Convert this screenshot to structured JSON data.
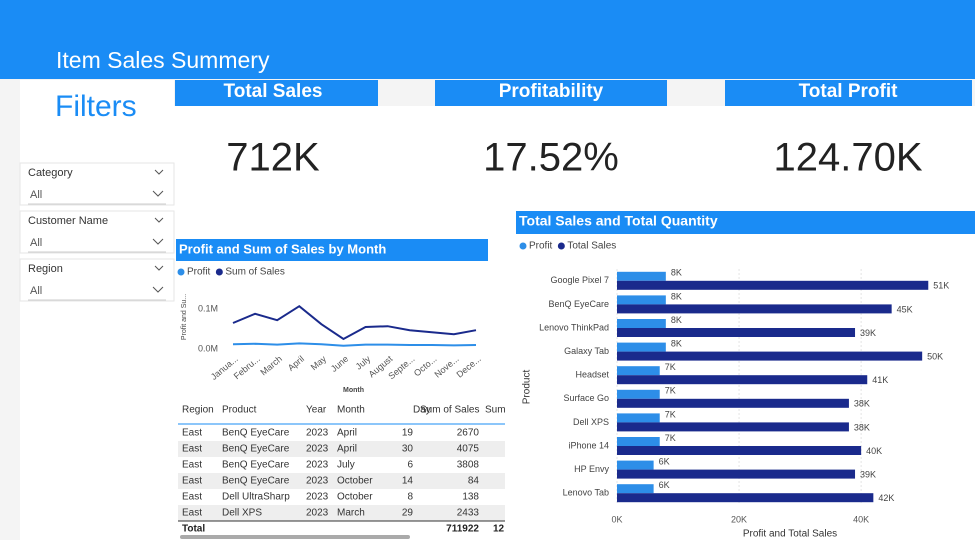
{
  "header": {
    "title": "Item Sales Summery"
  },
  "filters": {
    "title": "Filters",
    "items": [
      {
        "label": "Category",
        "value": "All"
      },
      {
        "label": "Customer Name",
        "value": "All"
      },
      {
        "label": "Region",
        "value": "All"
      }
    ]
  },
  "kpis": [
    {
      "label": "Total Sales",
      "value": "712K"
    },
    {
      "label": "Profitability",
      "value": "17.52%"
    },
    {
      "label": "Total Profit",
      "value": "124.70K"
    }
  ],
  "chart_data": [
    {
      "type": "line",
      "title": "Profit and Sum of Sales by Month",
      "x_label": "Month",
      "y_label": "Profit and Su...",
      "categories": [
        "Janua...",
        "Febru...",
        "March",
        "April",
        "May",
        "June",
        "July",
        "August",
        "Septe...",
        "Octo...",
        "Nove...",
        "Dece..."
      ],
      "series": [
        {
          "name": "Profit",
          "color": "#2d8ee8",
          "values": [
            0.012,
            0.013,
            0.011,
            0.014,
            0.012,
            0.008,
            0.011,
            0.011,
            0.01,
            0.01,
            0.009,
            0.01
          ]
        },
        {
          "name": "Sum of Sales",
          "color": "#1a2a8c",
          "values": [
            0.065,
            0.088,
            0.072,
            0.107,
            0.062,
            0.025,
            0.055,
            0.057,
            0.047,
            0.042,
            0.037,
            0.047
          ]
        }
      ],
      "ylim": [
        0,
        0.12
      ],
      "yticks": [
        {
          "value": 0,
          "label": "0.0M"
        },
        {
          "value": 0.1,
          "label": "0.1M"
        }
      ]
    },
    {
      "type": "bar",
      "orientation": "horizontal",
      "title": "Total Sales and Total Quantity",
      "x_label": "Profit and Total Sales",
      "y_label": "Product",
      "categories": [
        "Google Pixel 7",
        "BenQ EyeCare",
        "Lenovo ThinkPad",
        "Galaxy Tab",
        "Headset",
        "Surface Go",
        "Dell XPS",
        "iPhone 14",
        "HP Envy",
        "Lenovo Tab"
      ],
      "series": [
        {
          "name": "Profit",
          "color": "#2d8ee8",
          "values": [
            8,
            8,
            8,
            8,
            7,
            7,
            7,
            7,
            6,
            6
          ],
          "value_labels": [
            "8K",
            "8K",
            "8K",
            "8K",
            "7K",
            "7K",
            "7K",
            "7K",
            "6K",
            "6K"
          ]
        },
        {
          "name": "Total Sales",
          "color": "#1a2a8c",
          "values": [
            51,
            45,
            39,
            50,
            41,
            38,
            38,
            40,
            39,
            42
          ],
          "value_labels": [
            "51K",
            "45K",
            "39K",
            "50K",
            "41K",
            "38K",
            "38K",
            "40K",
            "39K",
            "42K"
          ]
        }
      ],
      "xlim": [
        0,
        58
      ],
      "xticks": [
        {
          "value": 0,
          "label": "0K"
        },
        {
          "value": 20,
          "label": "20K"
        },
        {
          "value": 40,
          "label": "40K"
        }
      ],
      "grid": true
    }
  ],
  "table": {
    "columns": [
      "Region",
      "Product",
      "Year",
      "Month",
      "Day",
      "Sum of Sales",
      "Sum"
    ],
    "rows": [
      [
        "East",
        "BenQ EyeCare",
        2023,
        "April",
        19,
        2670
      ],
      [
        "East",
        "BenQ EyeCare",
        2023,
        "April",
        30,
        4075
      ],
      [
        "East",
        "BenQ EyeCare",
        2023,
        "July",
        6,
        3808
      ],
      [
        "East",
        "BenQ EyeCare",
        2023,
        "October",
        14,
        84
      ],
      [
        "East",
        "Dell UltraSharp",
        2023,
        "October",
        8,
        138
      ],
      [
        "East",
        "Dell XPS",
        2023,
        "March",
        29,
        2433
      ]
    ],
    "total": {
      "label": "Total",
      "values": [
        711922,
        12
      ]
    }
  }
}
